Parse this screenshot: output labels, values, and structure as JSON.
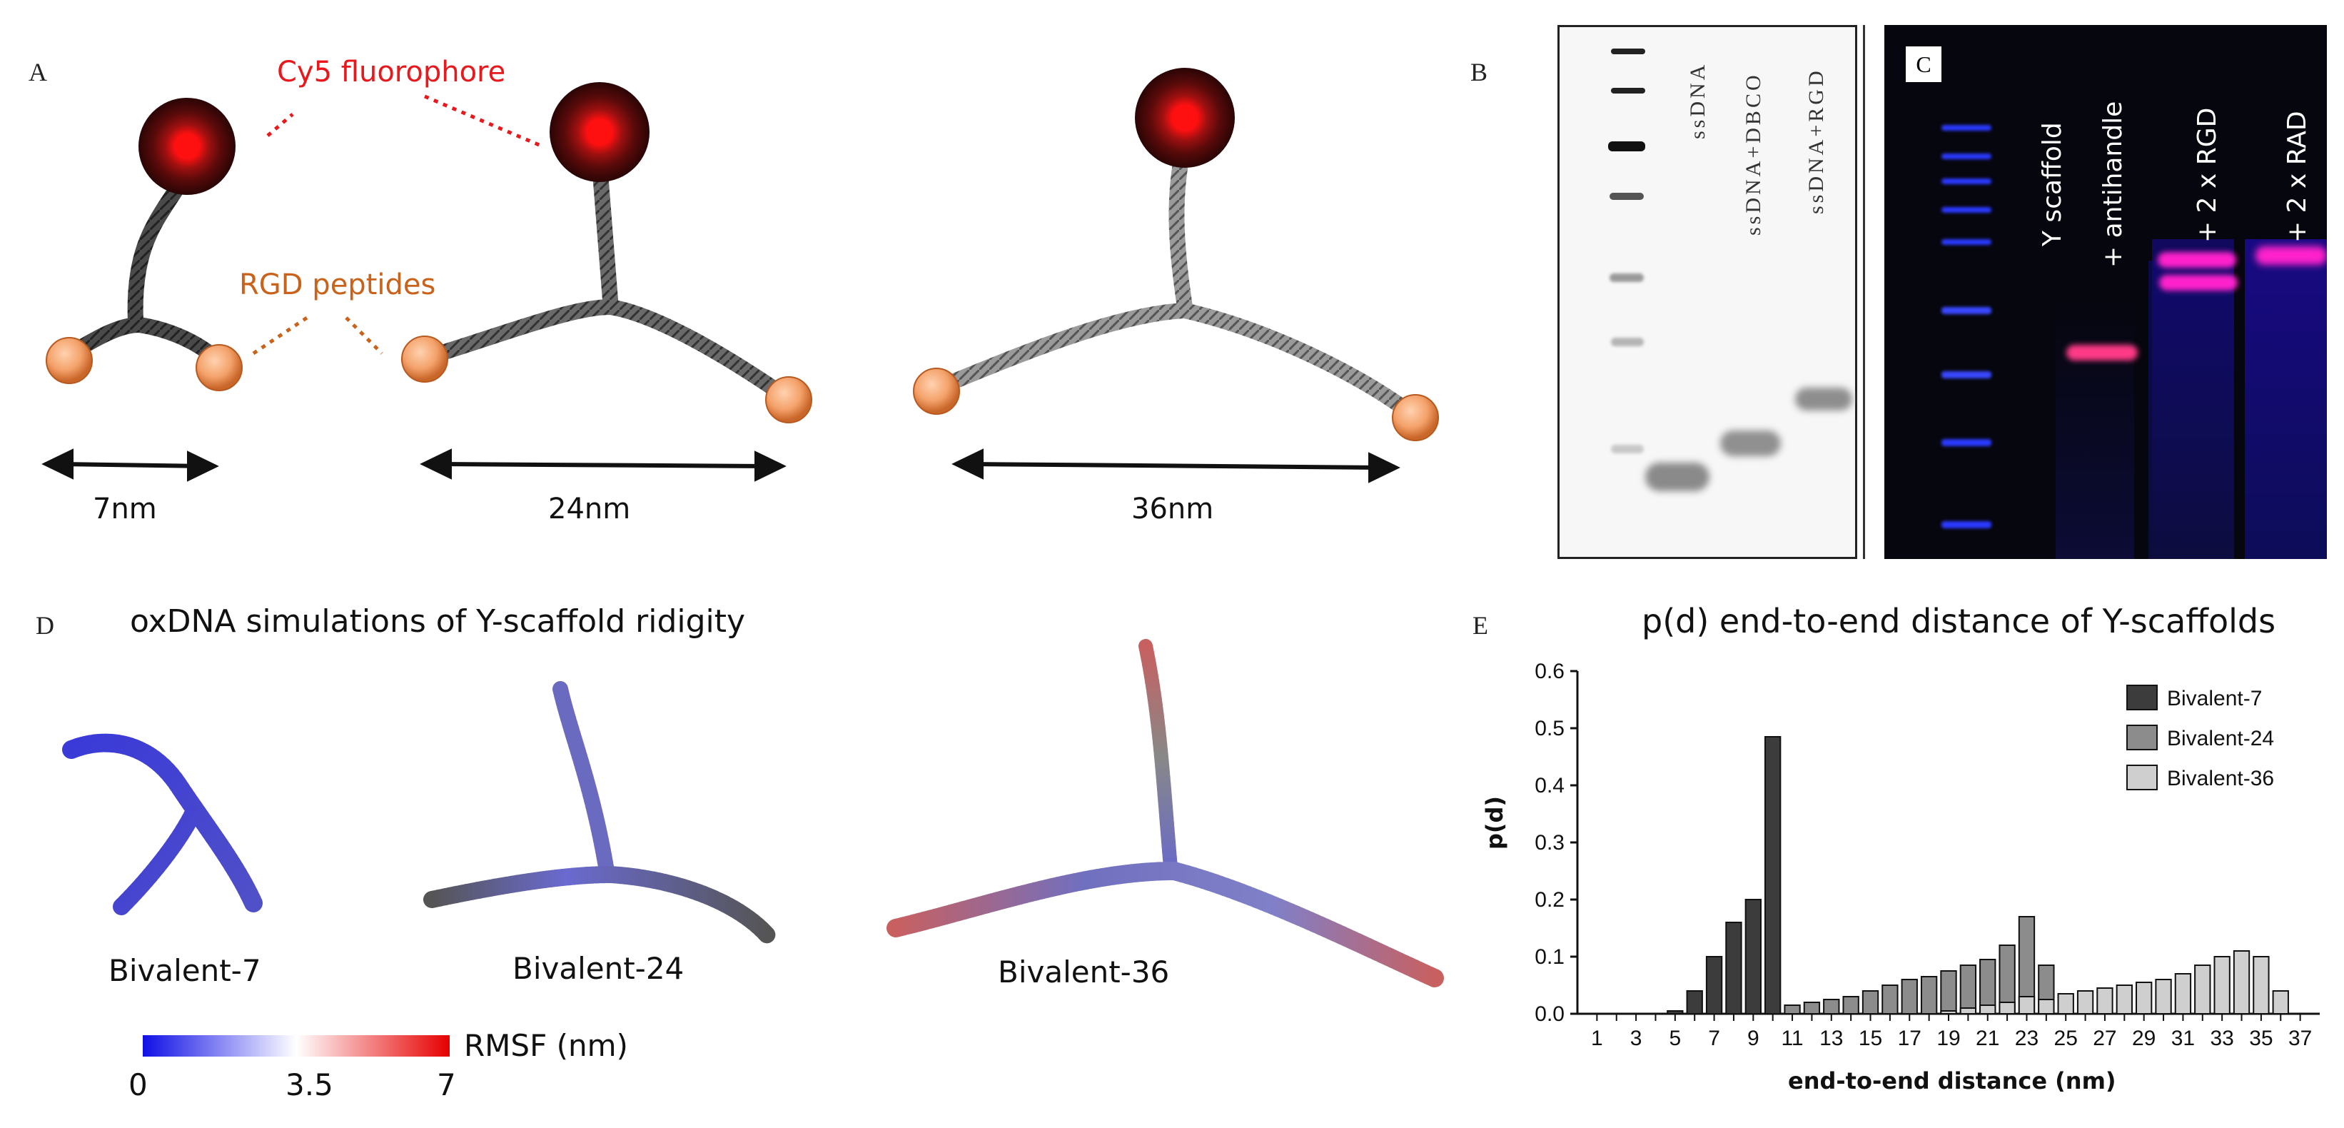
{
  "panels": {
    "a": "A",
    "b": "B",
    "c": "C",
    "d": "D",
    "e": "E"
  },
  "panel_a": {
    "fluorophore_label": "Cy5 fluorophore",
    "peptide_label": "RGD peptides",
    "distances": [
      "7nm",
      "24nm",
      "36nm"
    ],
    "colors": {
      "fluorophore": "#e8181c",
      "peptide": "#c9621a",
      "bead": "#f4a26b"
    }
  },
  "panel_b": {
    "lanes": [
      "ssDNA",
      "ssDNA+DBCO",
      "ssDNA+RGD"
    ]
  },
  "panel_c": {
    "lanes": [
      "Y scaffold",
      "+ antihandle",
      "+ 2 x RGD",
      "+ 2 x RAD"
    ]
  },
  "panel_d": {
    "title": "oxDNA simulations of Y-scaffold ridigity",
    "structures": [
      "Bivalent-7",
      "Bivalent-24",
      "Bivalent-36"
    ],
    "colorbar": {
      "label": "RMSF (nm)",
      "ticks": [
        "0",
        "3.5",
        "7"
      ],
      "colors": {
        "low": "#1010e6",
        "mid": "#ffffff",
        "high": "#e60000"
      }
    }
  },
  "chart_data": {
    "type": "bar",
    "title": "p(d) end-to-end distance of Y-scaffolds",
    "xlabel": "end-to-end distance (nm)",
    "ylabel": "p(d)",
    "ylim": [
      0,
      0.6
    ],
    "yticks": [
      "0.0",
      "0.1",
      "0.2",
      "0.3",
      "0.4",
      "0.5",
      "0.6"
    ],
    "categories": [
      1,
      2,
      3,
      4,
      5,
      6,
      7,
      8,
      9,
      10,
      11,
      12,
      13,
      14,
      15,
      16,
      17,
      18,
      19,
      20,
      21,
      22,
      23,
      24,
      25,
      26,
      27,
      28,
      29,
      30,
      31,
      32,
      33,
      34,
      35,
      36,
      37
    ],
    "xtick_labels": [
      "1",
      "3",
      "5",
      "7",
      "9",
      "11",
      "13",
      "15",
      "17",
      "19",
      "21",
      "23",
      "25",
      "27",
      "29",
      "31",
      "33",
      "35",
      "37"
    ],
    "series": [
      {
        "name": "Bivalent-7",
        "color": "#3c3c3c",
        "values": [
          0,
          0,
          0,
          0,
          0.005,
          0.04,
          0.1,
          0.16,
          0.2,
          0.485,
          0,
          0,
          0,
          0,
          0,
          0,
          0,
          0,
          0,
          0,
          0,
          0,
          0,
          0,
          0,
          0,
          0,
          0,
          0,
          0,
          0,
          0,
          0,
          0,
          0,
          0,
          0
        ]
      },
      {
        "name": "Bivalent-24",
        "color": "#8c8c8c",
        "values": [
          0,
          0,
          0,
          0,
          0,
          0,
          0,
          0,
          0,
          0,
          0.015,
          0.02,
          0.025,
          0.03,
          0.04,
          0.05,
          0.06,
          0.065,
          0.075,
          0.085,
          0.095,
          0.12,
          0.17,
          0.085,
          0,
          0,
          0,
          0,
          0,
          0,
          0,
          0,
          0,
          0,
          0,
          0,
          0
        ]
      },
      {
        "name": "Bivalent-36",
        "color": "#cfcfcf",
        "values": [
          0,
          0,
          0,
          0,
          0,
          0,
          0,
          0,
          0,
          0,
          0,
          0,
          0,
          0,
          0,
          0,
          0,
          0,
          0.005,
          0.01,
          0.015,
          0.02,
          0.03,
          0.025,
          0.035,
          0.04,
          0.045,
          0.05,
          0.055,
          0.06,
          0.07,
          0.085,
          0.1,
          0.11,
          0.1,
          0.04,
          0
        ]
      }
    ]
  }
}
